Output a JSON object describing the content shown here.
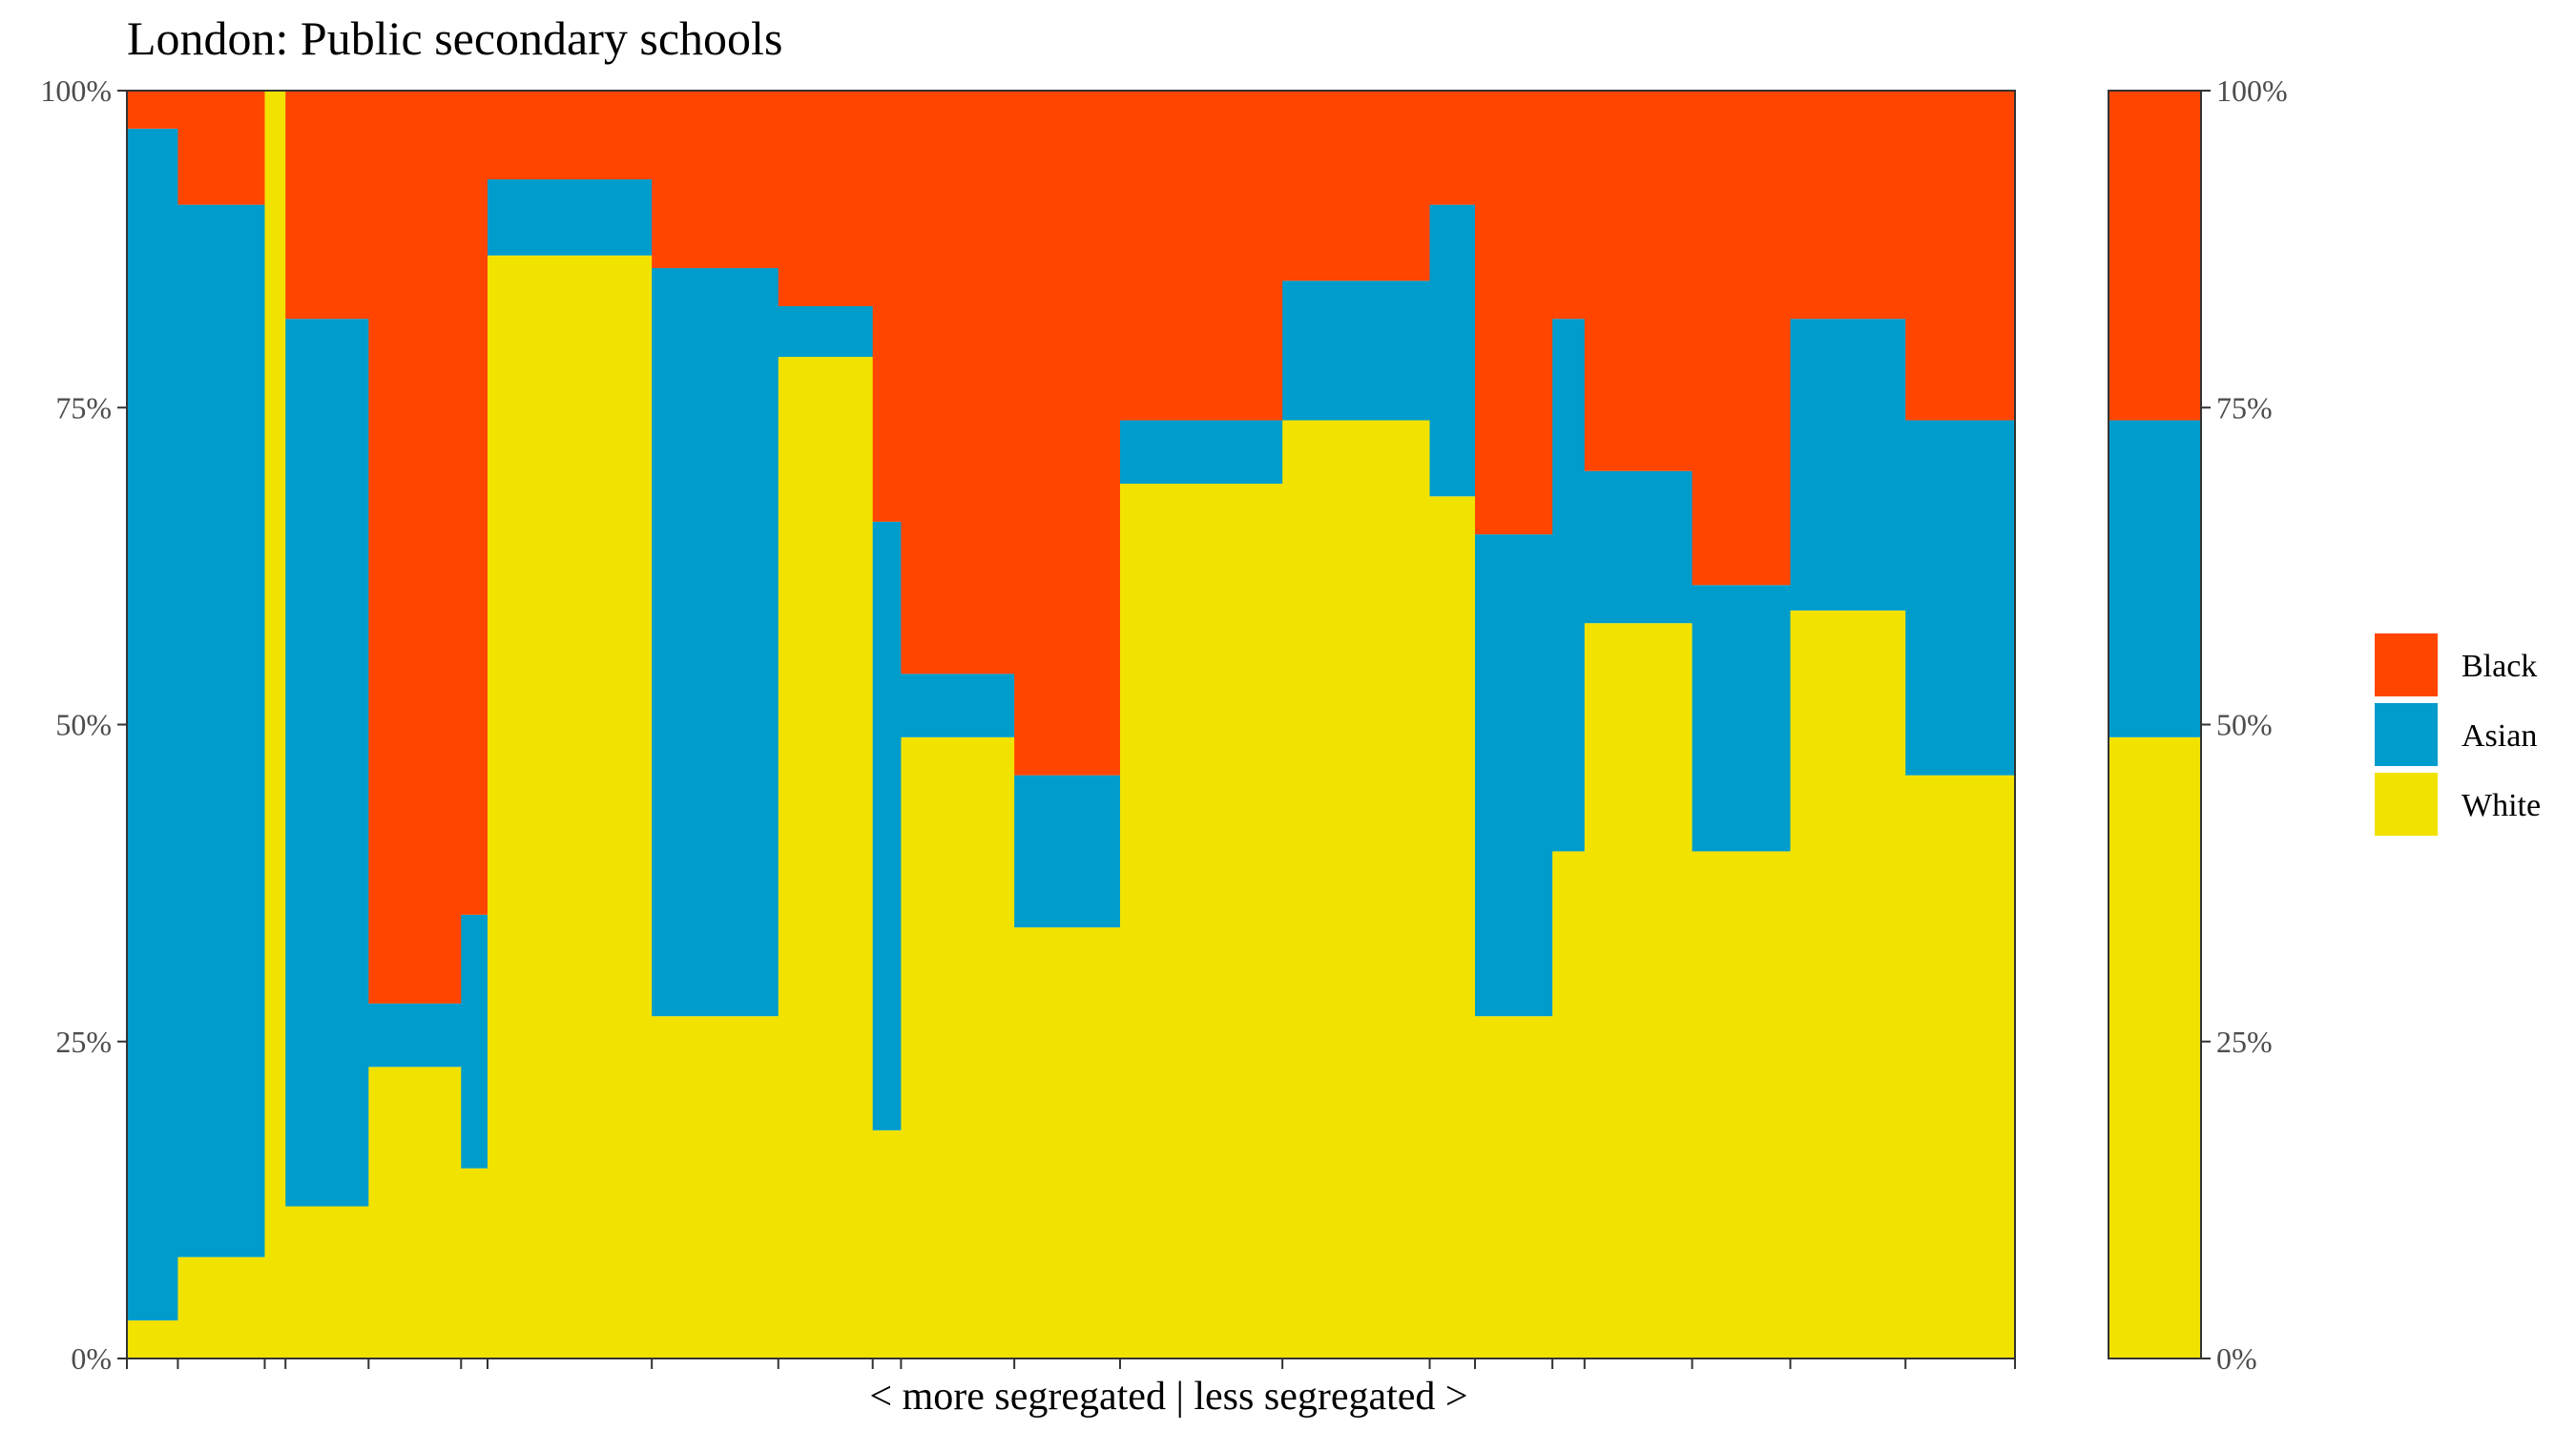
{
  "chart_data": {
    "type": "bar",
    "title": "London: Public secondary schools",
    "xlabel": "< more segregated | less segregated >",
    "ylabel": "",
    "ylim": [
      0,
      1
    ],
    "y_ticks": [
      "0%",
      "25%",
      "50%",
      "75%",
      "100%"
    ],
    "y_axis_right": true,
    "grid": false,
    "legend_position": "right",
    "colors": {
      "Black": "#ff4500",
      "Asian": "#009ccc",
      "White": "#f2e200"
    },
    "legend": [
      "Black",
      "Asian",
      "White"
    ],
    "x_scale_note": "variable-width columns; boundaries in relative position units from 0 (left) to 1 (right of main panel)",
    "main_panel": {
      "columns": [
        {
          "x0": 0.0,
          "x1": 0.027,
          "White": 0.03,
          "Asian": 0.94,
          "Black": 0.03
        },
        {
          "x0": 0.027,
          "x1": 0.073,
          "White": 0.08,
          "Asian": 0.83,
          "Black": 0.09
        },
        {
          "x0": 0.073,
          "x1": 0.084,
          "White": 1.0,
          "Asian": 0.0,
          "Black": 0.0
        },
        {
          "x0": 0.084,
          "x1": 0.128,
          "White": 0.12,
          "Asian": 0.7,
          "Black": 0.18
        },
        {
          "x0": 0.128,
          "x1": 0.177,
          "White": 0.23,
          "Asian": 0.05,
          "Black": 0.72
        },
        {
          "x0": 0.177,
          "x1": 0.191,
          "White": 0.15,
          "Asian": 0.2,
          "Black": 0.65
        },
        {
          "x0": 0.191,
          "x1": 0.278,
          "White": 0.87,
          "Asian": 0.06,
          "Black": 0.07
        },
        {
          "x0": 0.278,
          "x1": 0.345,
          "White": 0.27,
          "Asian": 0.59,
          "Black": 0.14
        },
        {
          "x0": 0.345,
          "x1": 0.395,
          "White": 0.79,
          "Asian": 0.04,
          "Black": 0.17
        },
        {
          "x0": 0.395,
          "x1": 0.41,
          "White": 0.18,
          "Asian": 0.48,
          "Black": 0.34
        },
        {
          "x0": 0.41,
          "x1": 0.47,
          "White": 0.49,
          "Asian": 0.05,
          "Black": 0.46
        },
        {
          "x0": 0.47,
          "x1": 0.526,
          "White": 0.34,
          "Asian": 0.12,
          "Black": 0.54
        },
        {
          "x0": 0.526,
          "x1": 0.612,
          "White": 0.69,
          "Asian": 0.05,
          "Black": 0.26
        },
        {
          "x0": 0.612,
          "x1": 0.69,
          "White": 0.74,
          "Asian": 0.11,
          "Black": 0.15
        },
        {
          "x0": 0.69,
          "x1": 0.714,
          "White": 0.68,
          "Asian": 0.23,
          "Black": 0.09
        },
        {
          "x0": 0.714,
          "x1": 0.755,
          "White": 0.27,
          "Asian": 0.38,
          "Black": 0.35
        },
        {
          "x0": 0.755,
          "x1": 0.772,
          "White": 0.4,
          "Asian": 0.42,
          "Black": 0.18
        },
        {
          "x0": 0.772,
          "x1": 0.829,
          "White": 0.58,
          "Asian": 0.12,
          "Black": 0.3
        },
        {
          "x0": 0.829,
          "x1": 0.881,
          "White": 0.4,
          "Asian": 0.21,
          "Black": 0.39
        },
        {
          "x0": 0.881,
          "x1": 0.942,
          "White": 0.59,
          "Asian": 0.23,
          "Black": 0.18
        },
        {
          "x0": 0.942,
          "x1": 1.0,
          "White": 0.46,
          "Asian": 0.28,
          "Black": 0.26
        }
      ]
    },
    "summary_panel": {
      "columns": [
        {
          "x0": 0,
          "x1": 1,
          "White": 0.49,
          "Asian": 0.25,
          "Black": 0.26
        }
      ]
    }
  }
}
